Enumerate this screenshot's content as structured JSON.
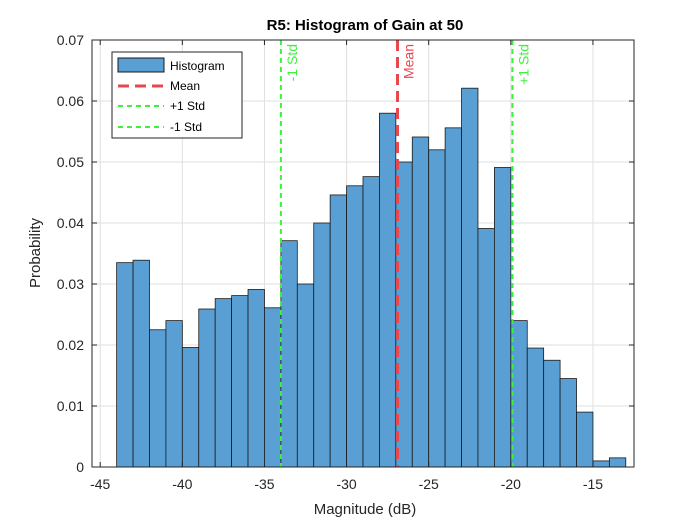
{
  "chart_data": {
    "type": "bar",
    "title": "R5: Histogram of Gain at 50",
    "xlabel": "Magnitude (dB)",
    "ylabel": "Probability",
    "xlim": [
      -45.5,
      -12.5
    ],
    "ylim": [
      0,
      0.07
    ],
    "xticks": [
      "-45",
      "-40",
      "-35",
      "-30",
      "-25",
      "-20",
      "-15"
    ],
    "yticks": [
      "0",
      "0.01",
      "0.02",
      "0.03",
      "0.04",
      "0.05",
      "0.06",
      "0.07"
    ],
    "grid": true,
    "legend_position": "top-left",
    "bin_start": -44,
    "bin_width": 1,
    "bins": [
      {
        "x0": -44,
        "x1": -43,
        "value": 0.0335
      },
      {
        "x0": -43,
        "x1": -42,
        "value": 0.0339
      },
      {
        "x0": -42,
        "x1": -41,
        "value": 0.0225
      },
      {
        "x0": -41,
        "x1": -40,
        "value": 0.024
      },
      {
        "x0": -40,
        "x1": -39,
        "value": 0.0196
      },
      {
        "x0": -39,
        "x1": -38,
        "value": 0.0259
      },
      {
        "x0": -38,
        "x1": -37,
        "value": 0.0276
      },
      {
        "x0": -37,
        "x1": -36,
        "value": 0.0281
      },
      {
        "x0": -36,
        "x1": -35,
        "value": 0.0291
      },
      {
        "x0": -35,
        "x1": -34,
        "value": 0.0261
      },
      {
        "x0": -34,
        "x1": -33,
        "value": 0.0371
      },
      {
        "x0": -33,
        "x1": -32,
        "value": 0.03
      },
      {
        "x0": -32,
        "x1": -31,
        "value": 0.04
      },
      {
        "x0": -31,
        "x1": -30,
        "value": 0.0446
      },
      {
        "x0": -30,
        "x1": -29,
        "value": 0.0461
      },
      {
        "x0": -29,
        "x1": -28,
        "value": 0.0476
      },
      {
        "x0": -28,
        "x1": -27,
        "value": 0.058
      },
      {
        "x0": -27,
        "x1": -26,
        "value": 0.05
      },
      {
        "x0": -26,
        "x1": -25,
        "value": 0.0541
      },
      {
        "x0": -25,
        "x1": -24,
        "value": 0.052
      },
      {
        "x0": -24,
        "x1": -23,
        "value": 0.0556
      },
      {
        "x0": -23,
        "x1": -22,
        "value": 0.0621
      },
      {
        "x0": -22,
        "x1": -21,
        "value": 0.0391
      },
      {
        "x0": -21,
        "x1": -20,
        "value": 0.0491
      },
      {
        "x0": -20,
        "x1": -19,
        "value": 0.024
      },
      {
        "x0": -19,
        "x1": -18,
        "value": 0.0195
      },
      {
        "x0": -18,
        "x1": -17,
        "value": 0.0175
      },
      {
        "x0": -17,
        "x1": -16,
        "value": 0.0145
      },
      {
        "x0": -16,
        "x1": -15,
        "value": 0.009
      },
      {
        "x0": -15,
        "x1": -14,
        "value": 0.001
      },
      {
        "x0": -14,
        "x1": -13,
        "value": 0.0015
      }
    ],
    "vlines": [
      {
        "name": "Mean",
        "x": -26.9,
        "color": "#e8474e",
        "label": "Mean"
      },
      {
        "name": "+1 Std",
        "x": -19.9,
        "color": "#3ff03f",
        "label": "+1 Std"
      },
      {
        "name": "-1 Std",
        "x": -34.0,
        "color": "#3ff03f",
        "label": "-1 Std"
      }
    ],
    "legend": [
      "Histogram",
      "Mean",
      "+1 Std",
      "-1 Std"
    ],
    "colors": {
      "bar_fill": "#5a9fd4",
      "bar_edge": "#1a1a1a",
      "mean": "#e8474e",
      "std": "#3ff03f",
      "grid": "#dfdfdf",
      "axis": "#262626"
    }
  }
}
